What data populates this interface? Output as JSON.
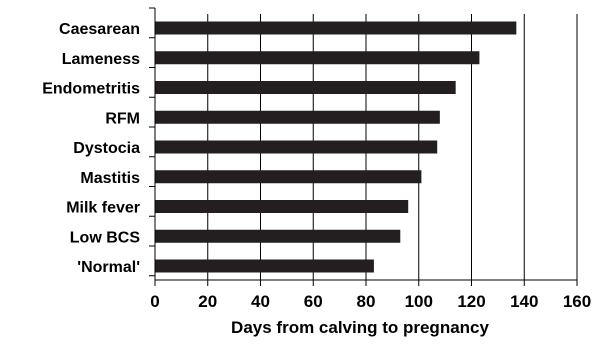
{
  "chart_data": {
    "type": "bar",
    "orientation": "horizontal",
    "categories": [
      "Caesarean",
      "Lameness",
      "Endometritis",
      "RFM",
      "Dystocia",
      "Mastitis",
      "Milk fever",
      "Low BCS",
      "'Normal'"
    ],
    "values": [
      137,
      123,
      114,
      108,
      107,
      101,
      96,
      93,
      83
    ],
    "xlabel": "Days from calving to pregnancy",
    "ylabel": "",
    "xlim": [
      0,
      160
    ],
    "xticks": [
      0,
      20,
      40,
      60,
      80,
      100,
      120,
      140,
      160
    ],
    "grid": {
      "x_major": true,
      "y": false
    },
    "bar_color": "#231f20"
  }
}
